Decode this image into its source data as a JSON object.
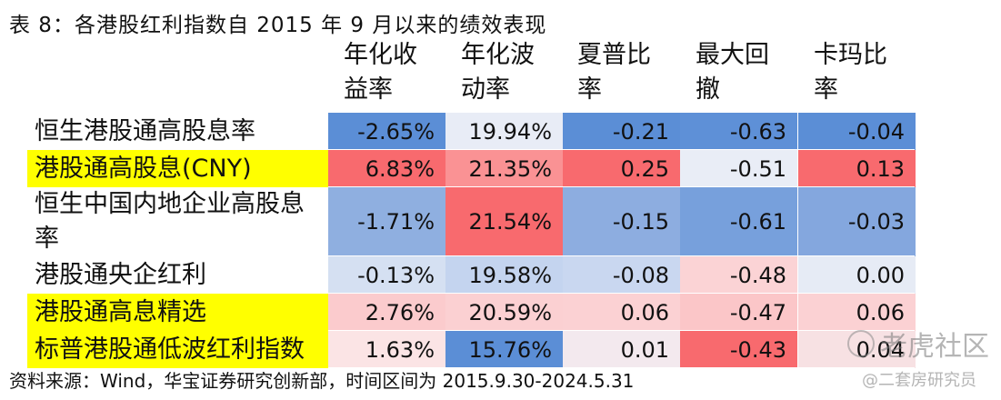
{
  "title": "表 8：各港股红利指数自 2015 年 9 月以来的绩效表现",
  "columns": [
    [
      "年化收",
      "益率"
    ],
    [
      "年化波",
      "动率"
    ],
    [
      "夏普比",
      "率"
    ],
    [
      "最大回",
      "撤"
    ],
    [
      "卡玛比",
      "率"
    ]
  ],
  "rows": [
    {
      "label_lines": [
        "恒生港股通高股息率"
      ],
      "highlight": false,
      "values": [
        "-2.65%",
        "19.94%",
        "-0.21",
        "-0.63",
        "-0.04"
      ],
      "colors": [
        "#5b8ed6",
        "#e8ecf6",
        "#5b8ed6",
        "#5e90d7",
        "#5b8ed6"
      ]
    },
    {
      "label_lines": [
        "港股通高股息(CNY)"
      ],
      "highlight": true,
      "values": [
        "6.83%",
        "21.35%",
        "0.25",
        "-0.51",
        "0.13"
      ],
      "colors": [
        "#f86a6e",
        "#fa9294",
        "#f86a6e",
        "#e9edf6",
        "#f86a6e"
      ]
    },
    {
      "label_lines": [
        "恒生中国内地企业高股息",
        "率"
      ],
      "highlight": false,
      "values": [
        "-1.71%",
        "21.54%",
        "-0.15",
        "-0.61",
        "-0.03"
      ],
      "colors": [
        "#8fafe0",
        "#f86a6e",
        "#8dade0",
        "#77a0dc",
        "#84a7de"
      ]
    },
    {
      "label_lines": [
        "港股通央企红利"
      ],
      "highlight": false,
      "values": [
        "-0.13%",
        "19.58%",
        "-0.08",
        "-0.48",
        "0.00"
      ],
      "colors": [
        "#d5e0f2",
        "#c4d4ef",
        "#c9d7f0",
        "#fbd3d5",
        "#e6ebf5"
      ]
    },
    {
      "label_lines": [
        "港股通高息精选"
      ],
      "highlight": true,
      "values": [
        "2.76%",
        "20.59%",
        "0.06",
        "-0.47",
        "0.06"
      ],
      "colors": [
        "#fbcbcd",
        "#fbd0d2",
        "#fbd1d3",
        "#fbc6c8",
        "#fbd1d3"
      ]
    },
    {
      "label_lines": [
        "标普港股通低波红利指数"
      ],
      "highlight": true,
      "values": [
        "1.63%",
        "15.76%",
        "0.01",
        "-0.43",
        "0.04"
      ],
      "colors": [
        "#fbe4e5",
        "#5b8ed6",
        "#f3e9ee",
        "#f86a6e",
        "#f7e1e3"
      ]
    }
  ],
  "source": "资料来源：Wind，华宝证券研究创新部，时间区间为 2015.9.30-2024.5.31",
  "watermarks": {
    "primary": "老虎社区",
    "secondary": "@二套房研究员"
  }
}
